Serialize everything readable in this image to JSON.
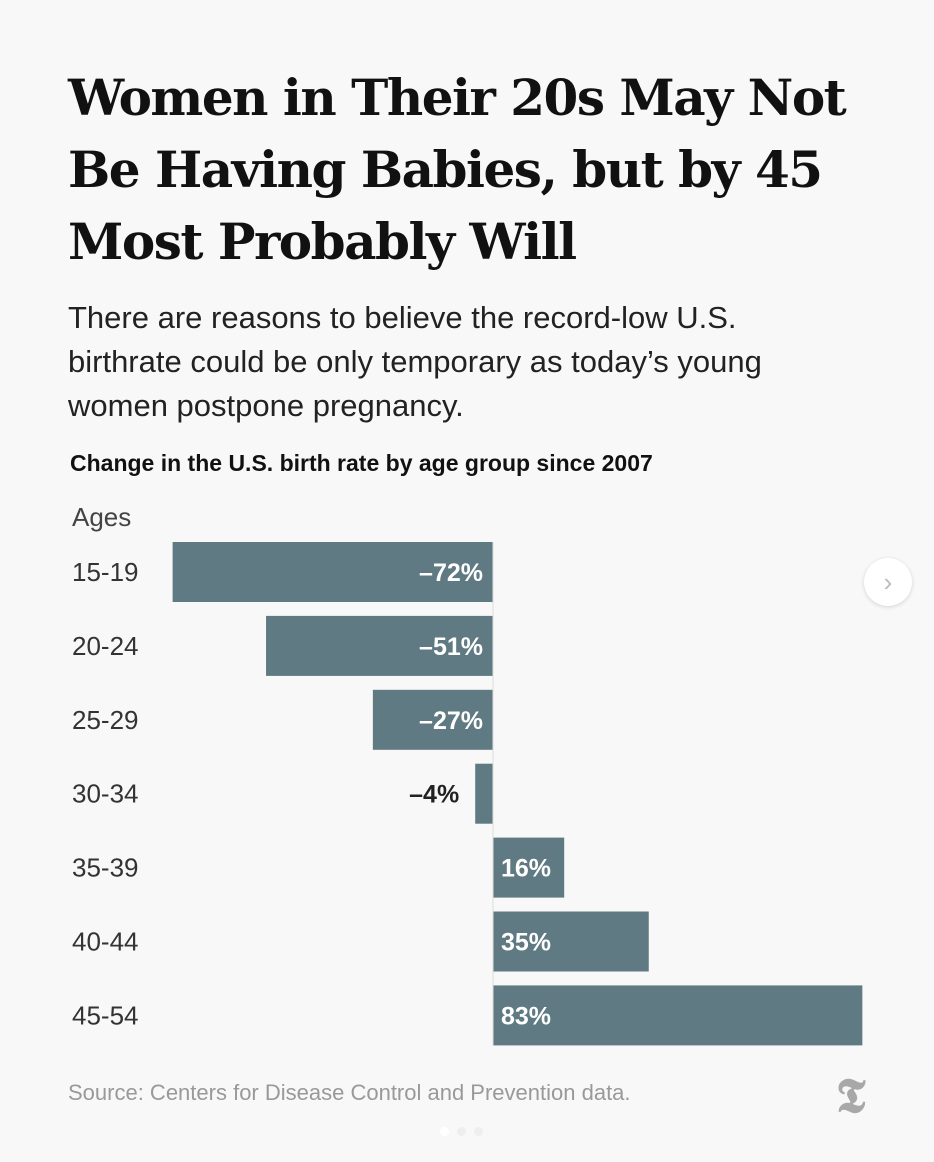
{
  "header": {
    "title": "Women in Their 20s May Not Be Having Babies, but by 45 Most Probably Will",
    "subtitle": "There are reasons to believe the record-low U.S. birthrate could be only temporary as today’s young women postpone pregnancy."
  },
  "chart_data": {
    "type": "bar",
    "orientation": "horizontal",
    "title": "Change in the U.S. birth rate by age group since 2007",
    "ylabel": "Ages",
    "categories": [
      "15-19",
      "20-24",
      "25-29",
      "30-34",
      "35-39",
      "40-44",
      "45-54"
    ],
    "values": [
      -72,
      -51,
      -27,
      -4,
      16,
      35,
      83
    ],
    "labels": [
      "–72%",
      "–51%",
      "–27%",
      "–4%",
      "16%",
      "35%",
      "83%"
    ],
    "bar_color": "#5f7a82",
    "xlim": [
      -72,
      83
    ],
    "grid": false
  },
  "footer": {
    "source": "Source: Centers for Disease Control and Prevention data.",
    "logo": "T",
    "logo_icon": "nyt-logo-icon"
  },
  "carousel": {
    "next_icon": "chevron-right-icon",
    "pages": 3,
    "current": 1
  }
}
